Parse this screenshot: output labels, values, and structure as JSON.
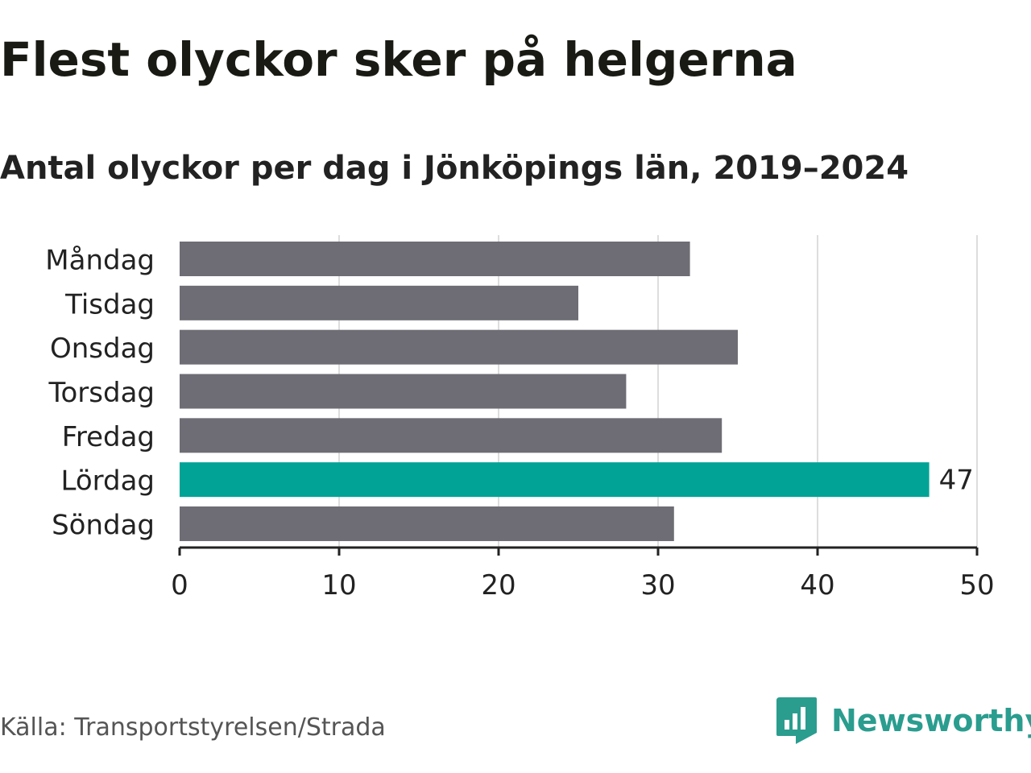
{
  "title": "Flest olyckor sker på helgerna",
  "subtitle": "Antal olyckor per dag i Jönköpings län, 2019–2024",
  "source": "Källa: Transportstyrelsen/Strada",
  "brand": {
    "name": "Newsworthy",
    "icon": "newsworthy-logo-icon",
    "color": "#2a9d8f"
  },
  "colors": {
    "bar_default": "#6e6d75",
    "bar_highlight": "#00a396",
    "gridline": "#dddddd",
    "axis": "#222222"
  },
  "chart_data": {
    "type": "bar",
    "orientation": "horizontal",
    "categories": [
      "Måndag",
      "Tisdag",
      "Onsdag",
      "Torsdag",
      "Fredag",
      "Lördag",
      "Söndag"
    ],
    "values": [
      32,
      25,
      35,
      28,
      34,
      47,
      31
    ],
    "highlight_index": 5,
    "data_labels": [
      "",
      "",
      "",
      "",
      "",
      "47",
      ""
    ],
    "xlim": [
      0,
      50
    ],
    "xticks": [
      0,
      10,
      20,
      30,
      40,
      50
    ],
    "xtick_labels": [
      "0",
      "10",
      "20",
      "30",
      "40",
      "50"
    ],
    "grid": true,
    "legend": "none"
  }
}
